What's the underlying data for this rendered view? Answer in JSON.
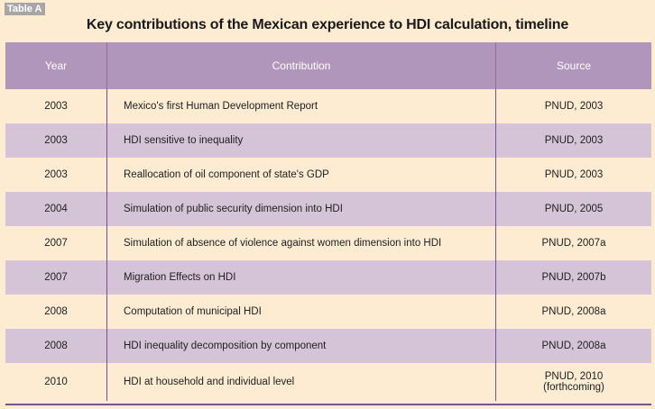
{
  "table_label": "Table A",
  "title": "Key contributions of the Mexican experience to HDI calculation, timeline",
  "headers": {
    "year": "Year",
    "contribution": "Contribution",
    "source": "Source"
  },
  "rows": [
    {
      "year": "2003",
      "contribution": "Mexico's first Human Development Report",
      "source": "PNUD, 2003"
    },
    {
      "year": "2003",
      "contribution": "HDI sensitive to inequality",
      "source": "PNUD, 2003"
    },
    {
      "year": "2003",
      "contribution": "Reallocation of oil component of state's GDP",
      "source": "PNUD, 2003"
    },
    {
      "year": "2004",
      "contribution": "Simulation of public security dimension into HDI",
      "source": "PNUD, 2005"
    },
    {
      "year": "2007",
      "contribution": "Simulation of absence of violence against women dimension into HDI",
      "source": "PNUD, 2007a"
    },
    {
      "year": "2007",
      "contribution": "Migration Effects on HDI",
      "source": "PNUD, 2007b"
    },
    {
      "year": "2008",
      "contribution": "Computation of municipal HDI",
      "source": "PNUD, 2008a"
    },
    {
      "year": "2008",
      "contribution": "HDI inequality decomposition by component",
      "source": "PNUD, 2008a"
    },
    {
      "year": "2010",
      "contribution": "HDI at household and individual level",
      "source": "PNUD, 2010",
      "source_note": "(forthcoming)"
    }
  ],
  "colors": {
    "header_bg": "#b096bb",
    "shade_bg": "#d5c4d7",
    "page_bg": "#fdebd2",
    "rule": "#7a4f8d"
  }
}
